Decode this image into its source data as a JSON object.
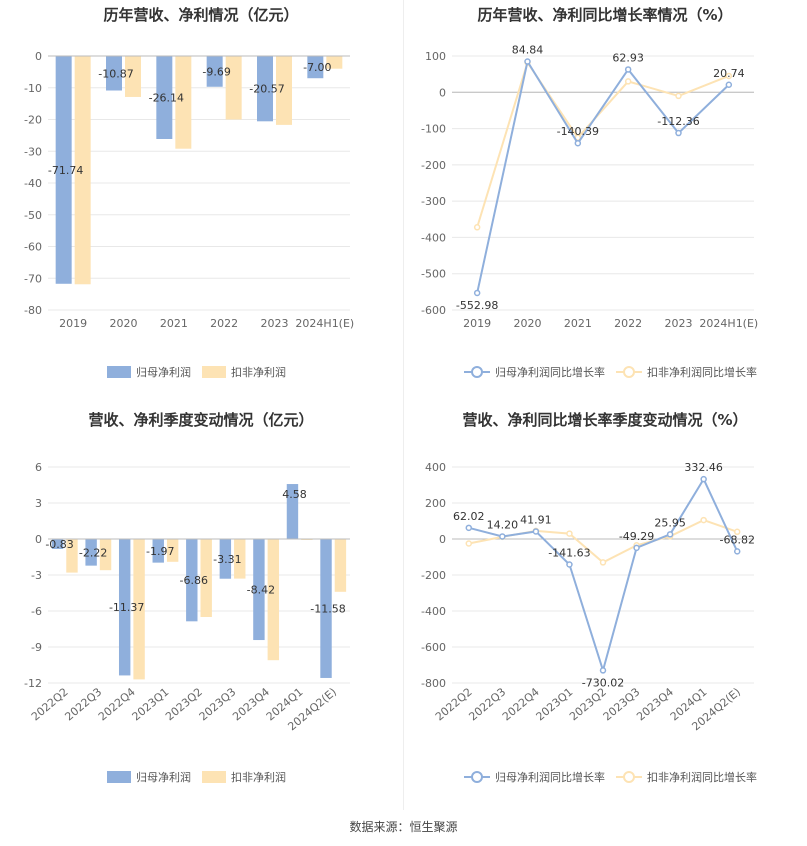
{
  "colors": {
    "series1": "#8fafdc",
    "series2": "#fde3b4",
    "grid": "#e8e8e8",
    "axis": "#bbbbbb"
  },
  "footer": {
    "source": "数据来源：恒生聚源"
  },
  "chart_data": [
    {
      "type": "bar",
      "title": "历年营收、净利情况（亿元）",
      "categories": [
        "2019",
        "2020",
        "2021",
        "2022",
        "2023",
        "2024H1(E)"
      ],
      "ylim": [
        -80,
        0
      ],
      "yticks": [
        0,
        -10,
        -20,
        -30,
        -40,
        -50,
        -60,
        -70,
        -80
      ],
      "series": [
        {
          "name": "归母净利润",
          "values": [
            -71.74,
            -10.87,
            -26.14,
            -9.69,
            -20.57,
            -7.0
          ],
          "labels": [
            "-71.74",
            "-10.87",
            "-26.14",
            "-9.69",
            "-20.57",
            "-7.00"
          ]
        },
        {
          "name": "扣非净利润",
          "values": [
            -71.9,
            -12.9,
            -29.2,
            -20.0,
            -21.7,
            -4.0
          ]
        }
      ],
      "legend": "bottom"
    },
    {
      "type": "line",
      "title": "历年营收、净利同比增长率情况（%）",
      "categories": [
        "2019",
        "2020",
        "2021",
        "2022",
        "2023",
        "2024H1(E)"
      ],
      "ylim": [
        -600,
        100
      ],
      "yticks": [
        100,
        0,
        -100,
        -200,
        -300,
        -400,
        -500,
        -600
      ],
      "series": [
        {
          "name": "归母净利润同比增长率",
          "values": [
            -552.98,
            84.84,
            -140.39,
            62.93,
            -112.36,
            20.74
          ],
          "labels": [
            "-552.98",
            "84.84",
            "-140.39",
            "62.93",
            "-112.36",
            "20.74"
          ]
        },
        {
          "name": "扣非净利润同比增长率",
          "values": [
            -372,
            82,
            -125,
            30,
            -10,
            45
          ]
        }
      ],
      "legend": "bottom"
    },
    {
      "type": "bar",
      "title": "营收、净利季度变动情况（亿元）",
      "categories": [
        "2022Q2",
        "2022Q3",
        "2022Q4",
        "2023Q1",
        "2023Q2",
        "2023Q3",
        "2023Q4",
        "2024Q1",
        "2024Q2(E)"
      ],
      "ylim": [
        -12,
        6
      ],
      "yticks": [
        6,
        3,
        0,
        -3,
        -6,
        -9,
        -12
      ],
      "series": [
        {
          "name": "归母净利润",
          "values": [
            -0.83,
            -2.22,
            -11.37,
            -1.97,
            -6.86,
            -3.31,
            -8.42,
            4.58,
            -11.58
          ],
          "labels": [
            "-0.83",
            "-2.22",
            "-11.37",
            "-1.97",
            "-6.86",
            "-3.31",
            "-8.42",
            "4.58",
            "-11.58"
          ]
        },
        {
          "name": "扣非净利润",
          "values": [
            -2.8,
            -2.6,
            -11.7,
            -1.9,
            -6.5,
            -3.3,
            -10.1,
            -0.05,
            -4.4
          ]
        }
      ],
      "legend": "bottom"
    },
    {
      "type": "line",
      "title": "营收、净利同比增长率季度变动情况（%）",
      "categories": [
        "2022Q2",
        "2022Q3",
        "2022Q4",
        "2023Q1",
        "2023Q2",
        "2023Q3",
        "2023Q4",
        "2024Q1",
        "2024Q2(E)"
      ],
      "ylim": [
        -800,
        400
      ],
      "yticks": [
        400,
        200,
        0,
        -200,
        -400,
        -600,
        -800
      ],
      "series": [
        {
          "name": "归母净利润同比增长率",
          "values": [
            62.02,
            14.2,
            41.91,
            -141.63,
            -730.02,
            -49.29,
            25.95,
            332.46,
            -68.82
          ],
          "labels": [
            "62.02",
            "14.20",
            "41.91",
            "-141.63",
            "-730.02",
            "-49.29",
            "25.95",
            "332.46",
            "-68.82"
          ]
        },
        {
          "name": "扣非净利润同比增长率",
          "values": [
            -25,
            12,
            45,
            30,
            -130,
            -35,
            15,
            105,
            40
          ]
        }
      ],
      "legend": "bottom"
    }
  ]
}
